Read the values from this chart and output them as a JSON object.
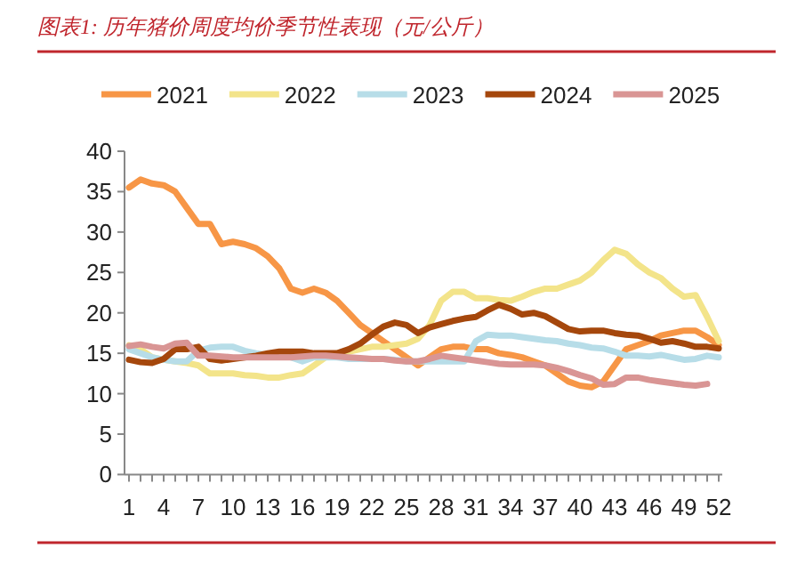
{
  "chart_data": {
    "type": "line",
    "title": "图表1:  历年猪价周度均价季节性表现（元/公斤）",
    "categories": [
      "1",
      null,
      null,
      "4",
      null,
      null,
      "7",
      null,
      null,
      "10",
      null,
      null,
      "13",
      null,
      null,
      "16",
      null,
      null,
      "19",
      null,
      null,
      "22",
      null,
      null,
      "25",
      null,
      null,
      "28",
      null,
      null,
      "31",
      null,
      null,
      "34",
      null,
      null,
      "37",
      null,
      null,
      "40",
      null,
      null,
      "43",
      null,
      null,
      "46",
      null,
      null,
      "49",
      null,
      null,
      "52"
    ],
    "ylim": [
      0,
      40
    ],
    "yticks": [
      0,
      5,
      10,
      15,
      20,
      25,
      30,
      35,
      40
    ],
    "grid": false,
    "legend": "top",
    "marker": "none",
    "line_style": "solid",
    "series": [
      {
        "name": "2021",
        "color": "#f79646",
        "values": [
          35.5,
          36.5,
          36,
          35.8,
          35,
          33,
          31,
          31,
          28.5,
          28.8,
          28.5,
          28,
          27,
          25.5,
          23,
          22.5,
          23,
          22.5,
          21.5,
          20,
          18.5,
          17.5,
          16.5,
          15.5,
          14.5,
          13.5,
          14.5,
          15.5,
          15.8,
          15.8,
          15.5,
          15.5,
          15,
          14.8,
          14.5,
          14,
          13.5,
          12.5,
          11.5,
          11,
          10.8,
          11.5,
          13.5,
          15.5,
          16,
          16.5,
          17.2,
          17.5,
          17.8,
          17.8,
          17,
          16
        ]
      },
      {
        "name": "2022",
        "color": "#f3e48a",
        "values": [
          16,
          15.5,
          14.5,
          14.2,
          14,
          13.8,
          13.5,
          12.5,
          12.5,
          12.5,
          12.3,
          12.2,
          12,
          12,
          12.3,
          12.5,
          13.5,
          14.5,
          15,
          15.2,
          15.5,
          15.8,
          15.8,
          16,
          16.2,
          16.8,
          18.5,
          21.5,
          22.6,
          22.6,
          21.8,
          21.8,
          21.6,
          21.5,
          22,
          22.6,
          23,
          23,
          23.5,
          24,
          25,
          26.5,
          27.8,
          27.3,
          26,
          25,
          24.3,
          23,
          22,
          22.2,
          19.5,
          16.5
        ]
      },
      {
        "name": "2023",
        "color": "#b7dde8",
        "values": [
          15.5,
          15,
          14.5,
          14.2,
          14,
          14,
          15.3,
          15.7,
          15.8,
          15.8,
          15.3,
          15,
          14.8,
          null,
          14.5,
          14,
          14.5,
          14.5,
          14.5,
          14.3,
          14.3,
          14.3,
          14.3,
          14.2,
          14,
          14,
          14,
          14,
          14,
          14,
          16.5,
          17.3,
          17.2,
          17.2,
          17,
          16.8,
          16.6,
          16.5,
          16.2,
          16,
          15.7,
          15.6,
          15.2,
          14.7,
          14.7,
          14.6,
          14.8,
          14.5,
          14.2,
          14.3,
          14.7,
          14.5
        ]
      },
      {
        "name": "2024",
        "color": "#a5470c",
        "values": [
          14.2,
          13.9,
          13.8,
          14.3,
          15.5,
          15.5,
          15.8,
          14.3,
          14.1,
          14.3,
          14.5,
          14.7,
          15,
          15.2,
          15.2,
          15.2,
          15,
          15,
          15,
          15.5,
          16.2,
          17.3,
          18.3,
          18.8,
          18.5,
          17.5,
          18.2,
          18.6,
          19,
          19.3,
          19.5,
          20.3,
          21,
          20.5,
          19.8,
          20,
          19.6,
          18.8,
          18,
          17.7,
          17.8,
          17.8,
          17.5,
          17.3,
          17.2,
          16.8,
          16.3,
          16.5,
          16.2,
          15.8,
          15.8,
          15.6
        ]
      },
      {
        "name": "2025",
        "color": "#d99594",
        "values": [
          15.9,
          16.1,
          15.8,
          15.6,
          16.2,
          16.3,
          14.7,
          14.7,
          14.6,
          14.5,
          14.5,
          14.5,
          14.5,
          14.5,
          14.5,
          14.6,
          14.7,
          14.7,
          14.6,
          14.5,
          14.4,
          14.3,
          14.3,
          14.1,
          14,
          14,
          14.3,
          14.7,
          14.5,
          14.3,
          14.1,
          13.9,
          13.7,
          13.6,
          13.6,
          13.6,
          13.5,
          13.2,
          12.8,
          12.3,
          11.9,
          11.1,
          11.2,
          12,
          12,
          11.7,
          11.5,
          11.3,
          11.1,
          11,
          11.2,
          null
        ]
      }
    ]
  }
}
